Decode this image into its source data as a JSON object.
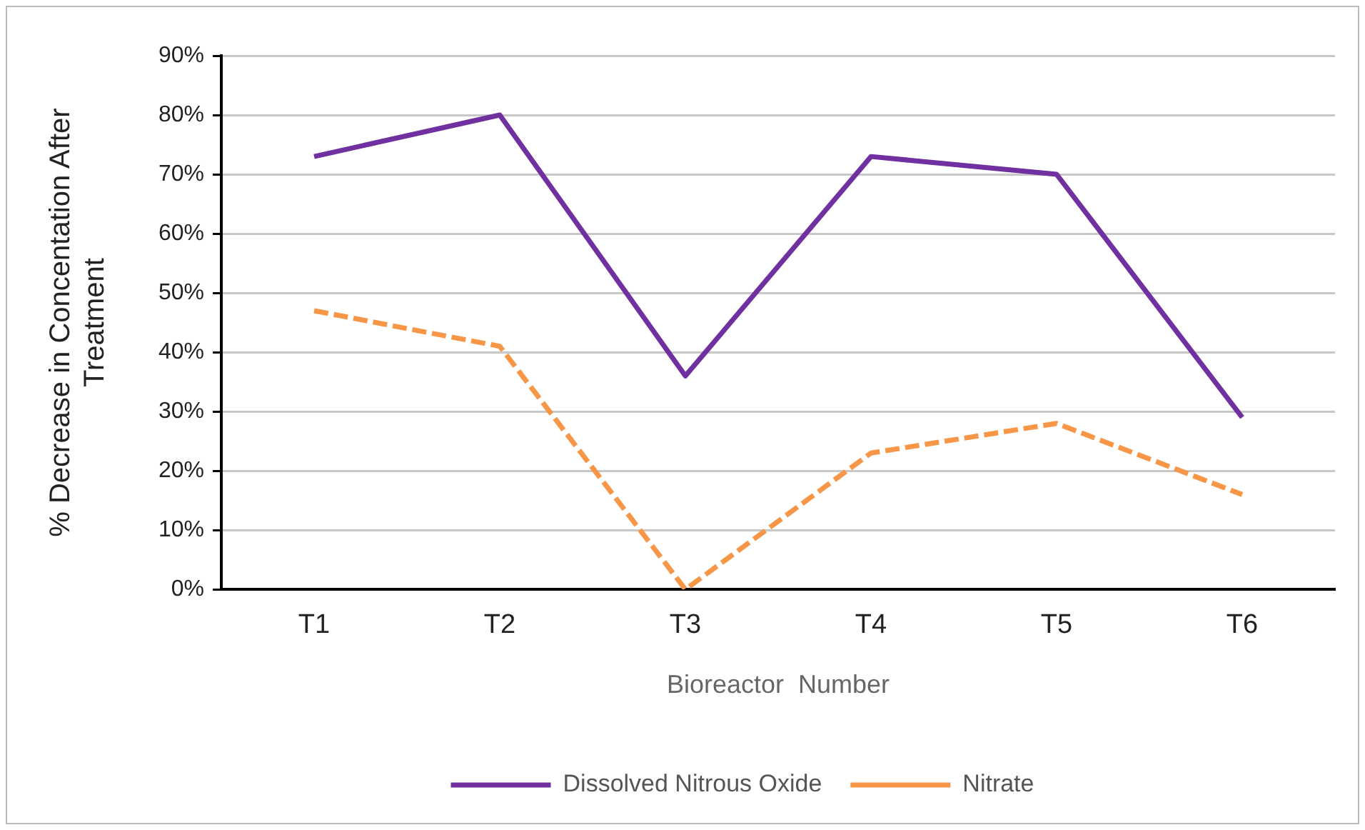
{
  "chart_data": {
    "type": "line",
    "xlabel": "Bioreactor  Number",
    "ylabel": "% Decrease in Concentation After Treatment",
    "categories": [
      "T1",
      "T2",
      "T3",
      "T4",
      "T5",
      "T6"
    ],
    "series": [
      {
        "name": "Dissolved Nitrous Oxide",
        "color": "#7030a0",
        "line_style": "solid",
        "values": [
          73,
          80,
          36,
          73,
          70,
          29
        ]
      },
      {
        "name": "Nitrate",
        "color": "#f79646",
        "line_style": "dashed",
        "values": [
          47,
          41,
          0,
          23,
          28,
          16
        ]
      }
    ],
    "ylim": [
      0,
      90
    ],
    "yticks": [
      {
        "value": 0,
        "label": "0%"
      },
      {
        "value": 10,
        "label": "10%"
      },
      {
        "value": 20,
        "label": "20%"
      },
      {
        "value": 30,
        "label": "30%"
      },
      {
        "value": 40,
        "label": "40%"
      },
      {
        "value": 50,
        "label": "50%"
      },
      {
        "value": 60,
        "label": "60%"
      },
      {
        "value": 70,
        "label": "70%"
      },
      {
        "value": 80,
        "label": "80%"
      },
      {
        "value": 90,
        "label": "90%"
      }
    ],
    "grid": "y",
    "legend": "bottom",
    "marker": "none"
  }
}
